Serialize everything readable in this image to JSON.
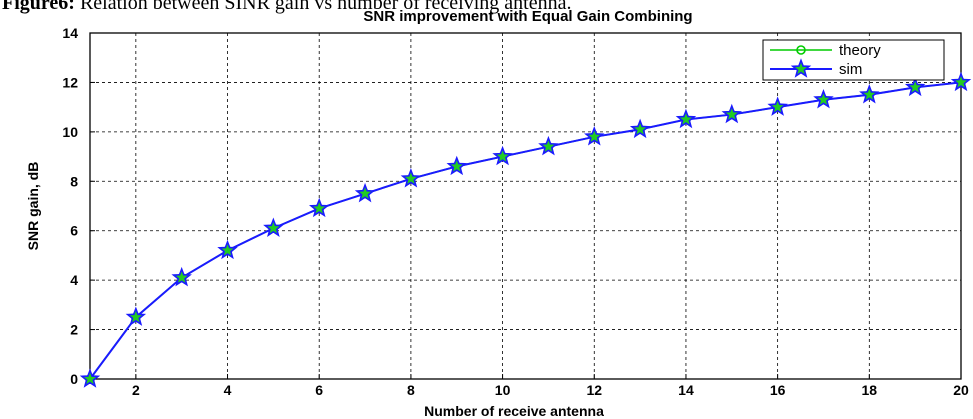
{
  "caption": {
    "label": "Figure6:",
    "text": " Relation between SINR gain vs number of receiving antenna."
  },
  "chart_data": {
    "type": "line",
    "title": "SNR improvement with Equal Gain Combining",
    "xlabel": "Number of receive antenna",
    "ylabel": "SNR gain, dB",
    "xlim": [
      1,
      20
    ],
    "ylim": [
      0,
      14
    ],
    "xticks": [
      2,
      4,
      6,
      8,
      10,
      12,
      14,
      16,
      18,
      20
    ],
    "yticks": [
      0,
      2,
      4,
      6,
      8,
      10,
      12,
      14
    ],
    "grid": true,
    "legend_position": "top-right",
    "x": [
      1,
      2,
      3,
      4,
      5,
      6,
      7,
      8,
      9,
      10,
      11,
      12,
      13,
      14,
      15,
      16,
      17,
      18,
      19,
      20
    ],
    "series": [
      {
        "name": "theory",
        "color": "#00cc00",
        "marker": "circle",
        "values": [
          0,
          2.5,
          4.1,
          5.2,
          6.1,
          6.9,
          7.5,
          8.1,
          8.6,
          9.0,
          9.4,
          9.8,
          10.1,
          10.5,
          10.7,
          11.0,
          11.3,
          11.5,
          11.8,
          12.0
        ]
      },
      {
        "name": "sim",
        "color": "#1a1aff",
        "marker": "star",
        "values": [
          0,
          2.5,
          4.1,
          5.2,
          6.1,
          6.9,
          7.5,
          8.1,
          8.6,
          9.0,
          9.4,
          9.8,
          10.1,
          10.5,
          10.7,
          11.0,
          11.3,
          11.5,
          11.8,
          12.0
        ]
      }
    ]
  }
}
